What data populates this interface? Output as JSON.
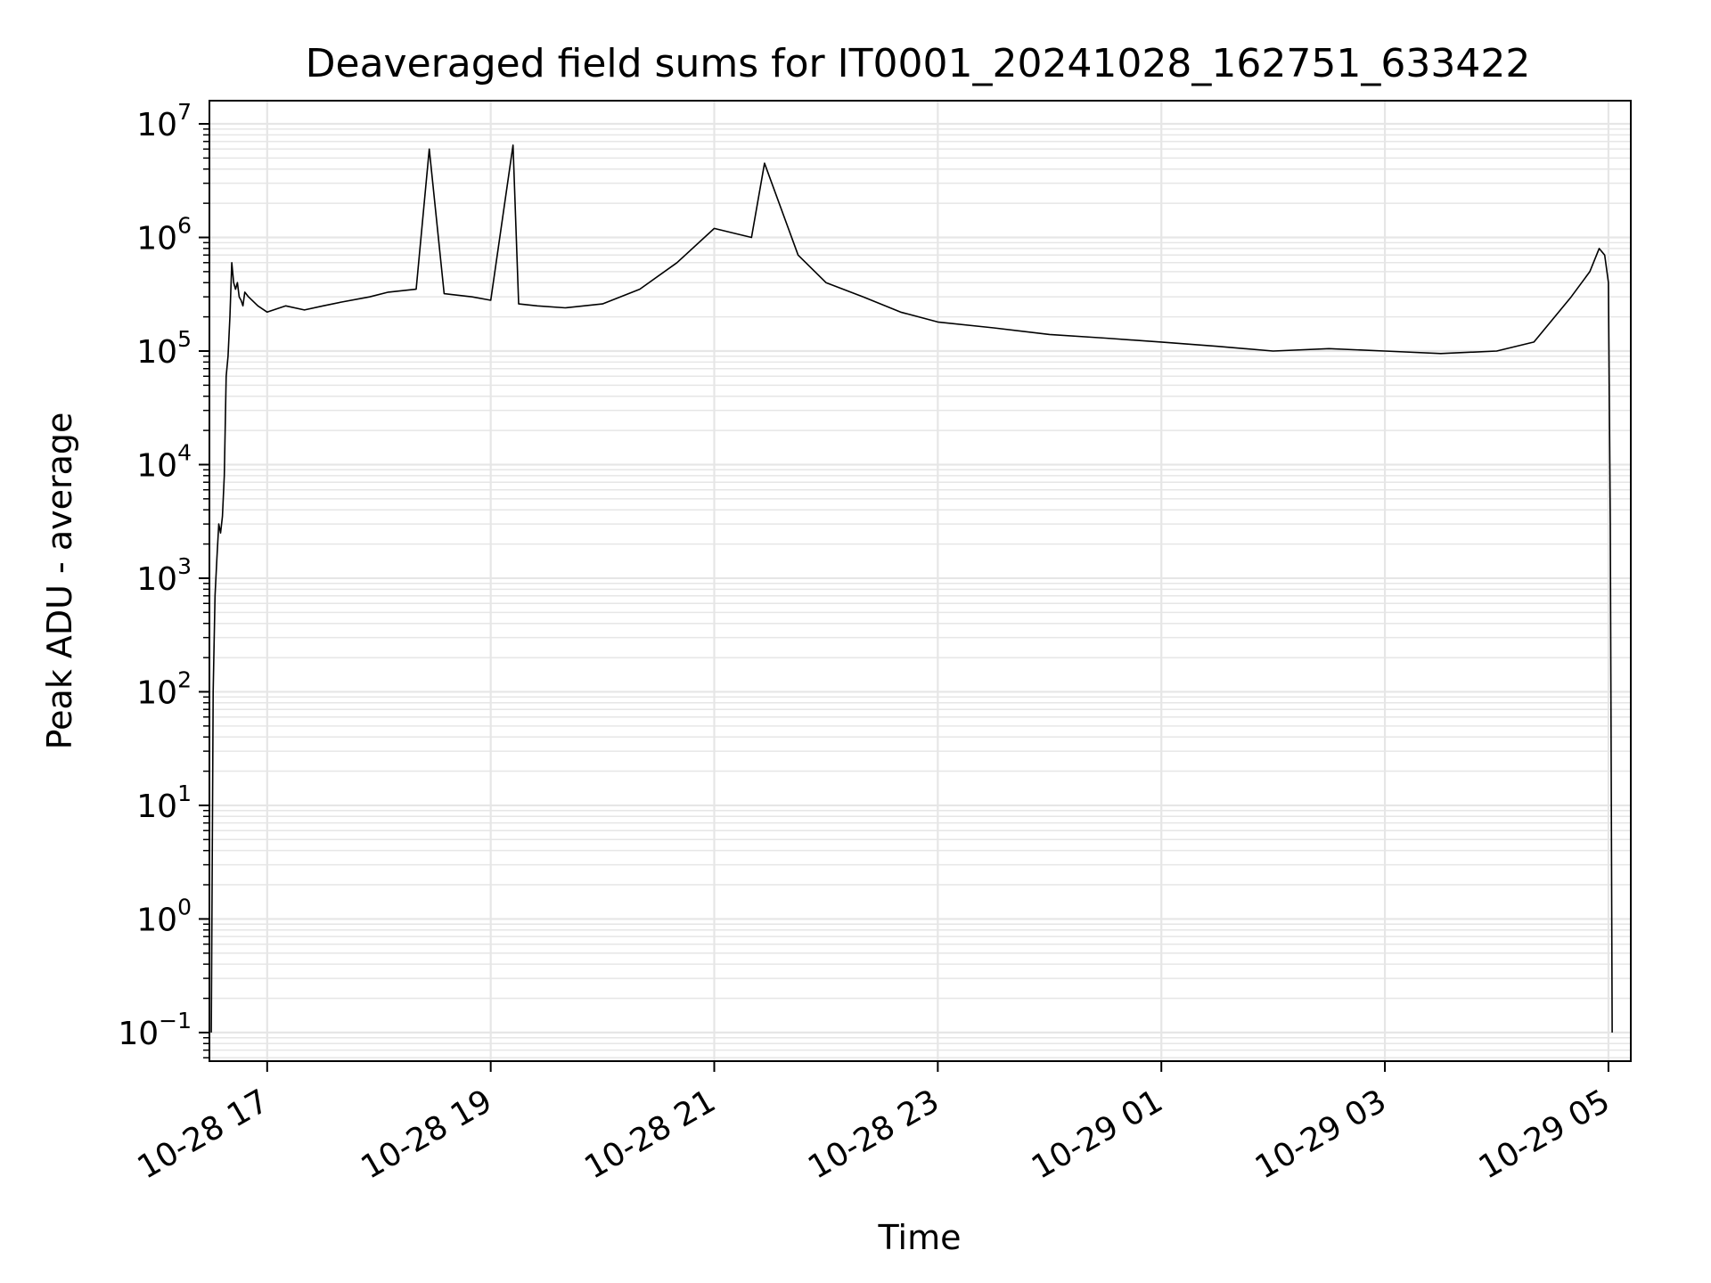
{
  "chart_data": {
    "type": "line",
    "title": "Deaveraged field sums for IT0001_20241028_162751_633422",
    "xlabel": "Time",
    "ylabel": "Peak ADU - average",
    "yscale": "log",
    "grid": true,
    "line_color": "#000000",
    "grid_color": "#e6e6e6",
    "xlim": [
      "2024-10-28 16:29",
      "2024-10-29 05:12"
    ],
    "ylim": [
      0.056,
      16000000
    ],
    "x_ticks": [
      {
        "label": "10-28 17",
        "value": "2024-10-28 17:00"
      },
      {
        "label": "10-28 19",
        "value": "2024-10-28 19:00"
      },
      {
        "label": "10-28 21",
        "value": "2024-10-28 21:00"
      },
      {
        "label": "10-28 23",
        "value": "2024-10-28 23:00"
      },
      {
        "label": "10-29 01",
        "value": "2024-10-29 01:00"
      },
      {
        "label": "10-29 03",
        "value": "2024-10-29 03:00"
      },
      {
        "label": "10-29 05",
        "value": "2024-10-29 05:00"
      }
    ],
    "y_ticks": [
      {
        "base": "10",
        "exp": "−1",
        "value": 0.1
      },
      {
        "base": "10",
        "exp": "0",
        "value": 1
      },
      {
        "base": "10",
        "exp": "1",
        "value": 10
      },
      {
        "base": "10",
        "exp": "2",
        "value": 100
      },
      {
        "base": "10",
        "exp": "3",
        "value": 1000
      },
      {
        "base": "10",
        "exp": "4",
        "value": 10000
      },
      {
        "base": "10",
        "exp": "5",
        "value": 100000
      },
      {
        "base": "10",
        "exp": "6",
        "value": 1000000
      },
      {
        "base": "10",
        "exp": "7",
        "value": 10000000
      }
    ],
    "series": [
      {
        "x": [
          "2024-10-28 16:30",
          "2024-10-28 16:31",
          "2024-10-28 16:32",
          "2024-10-28 16:33",
          "2024-10-28 16:34",
          "2024-10-28 16:35",
          "2024-10-28 16:36",
          "2024-10-28 16:37",
          "2024-10-28 16:38",
          "2024-10-28 16:39",
          "2024-10-28 16:40",
          "2024-10-28 16:41",
          "2024-10-28 16:42",
          "2024-10-28 16:43",
          "2024-10-28 16:44",
          "2024-10-28 16:45",
          "2024-10-28 16:46",
          "2024-10-28 16:47",
          "2024-10-28 16:48",
          "2024-10-28 16:50",
          "2024-10-28 16:55",
          "2024-10-28 17:00",
          "2024-10-28 17:10",
          "2024-10-28 17:20",
          "2024-10-28 17:30",
          "2024-10-28 17:40",
          "2024-10-28 17:55",
          "2024-10-28 18:05",
          "2024-10-28 18:20",
          "2024-10-28 18:27",
          "2024-10-28 18:35",
          "2024-10-28 18:50",
          "2024-10-28 19:00",
          "2024-10-28 19:12",
          "2024-10-28 19:15",
          "2024-10-28 19:25",
          "2024-10-28 19:40",
          "2024-10-28 20:00",
          "2024-10-28 20:20",
          "2024-10-28 20:40",
          "2024-10-28 21:00",
          "2024-10-28 21:20",
          "2024-10-28 21:27",
          "2024-10-28 21:45",
          "2024-10-28 22:00",
          "2024-10-28 22:20",
          "2024-10-28 22:40",
          "2024-10-28 23:00",
          "2024-10-28 23:30",
          "2024-10-29 00:00",
          "2024-10-29 00:30",
          "2024-10-29 01:00",
          "2024-10-29 01:30",
          "2024-10-29 02:00",
          "2024-10-29 02:30",
          "2024-10-29 03:00",
          "2024-10-29 03:30",
          "2024-10-29 04:00",
          "2024-10-29 04:20",
          "2024-10-29 04:40",
          "2024-10-29 04:50",
          "2024-10-29 04:55",
          "2024-10-29 04:58",
          "2024-10-29 05:00",
          "2024-10-29 05:01",
          "2024-10-29 05:02"
        ],
        "y": [
          0.1,
          100,
          700,
          1500,
          3000,
          2500,
          3500,
          8000,
          60000,
          90000,
          200000,
          600000,
          400000,
          350000,
          400000,
          300000,
          280000,
          250000,
          330000,
          300000,
          250000,
          220000,
          250000,
          230000,
          250000,
          270000,
          300000,
          330000,
          350000,
          6000000,
          320000,
          300000,
          280000,
          6500000,
          260000,
          250000,
          240000,
          260000,
          350000,
          600000,
          1200000,
          1000000,
          4500000,
          700000,
          400000,
          300000,
          220000,
          180000,
          160000,
          140000,
          130000,
          120000,
          110000,
          100000,
          105000,
          100000,
          95000,
          100000,
          120000,
          300000,
          500000,
          800000,
          700000,
          400000,
          3000,
          0.1
        ]
      }
    ]
  }
}
